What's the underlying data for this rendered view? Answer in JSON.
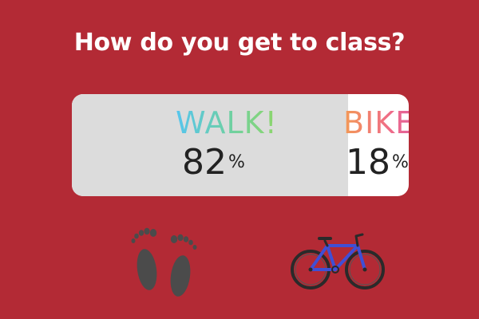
{
  "question": "How do you get to class?",
  "options": [
    {
      "label": "WALK!",
      "percent": 82,
      "percent_value": "82",
      "percent_unit": "%",
      "icon": "footprints-icon",
      "gradient": [
        "#56c5ee",
        "#8ed66a"
      ]
    },
    {
      "label": "BIKE!",
      "percent": 18,
      "percent_value": "18",
      "percent_unit": "%",
      "icon": "bicycle-icon",
      "gradient": [
        "#f39a55",
        "#d85aa8"
      ]
    }
  ],
  "colors": {
    "background": "#b32a35",
    "poll_fill": "#dcdcdc",
    "poll_empty": "#ffffff",
    "text_dark": "#222222",
    "bike_frame": "#3f4fd6"
  }
}
